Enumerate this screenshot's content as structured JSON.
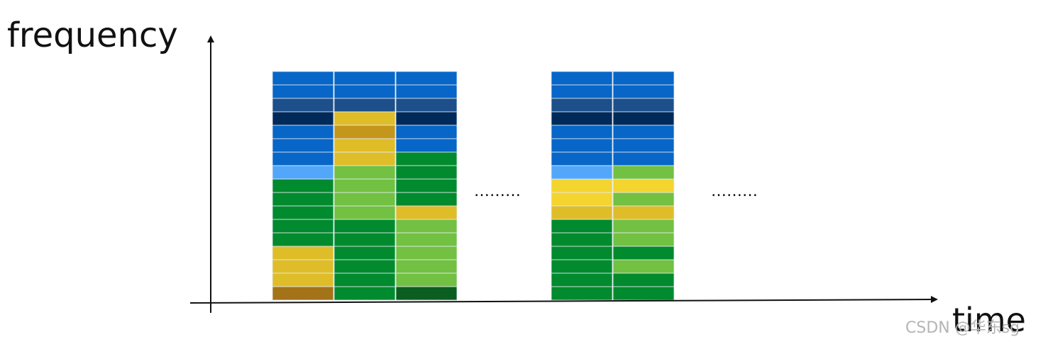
{
  "labels": {
    "y_axis": "frequency",
    "x_axis": "time",
    "ellipsis_1": "………",
    "ellipsis_2": "………"
  },
  "watermark": "CSDN @华东sg",
  "colors": {
    "B": "#0766c7",
    "D": "#1d4f8a",
    "N": "#002a5a",
    "L": "#52a7fa",
    "G": "#018a2e",
    "g": "#72c142",
    "Y": "#dfbd29",
    "O": "#c4961c",
    "y": "#f4d42f",
    "R": "#a47218",
    "K": "#0a5e20",
    "axis": "#111111",
    "divider": "#e8eef3"
  },
  "columns": [
    {
      "group": 1,
      "cells": [
        "B",
        "B",
        "D",
        "N",
        "B",
        "B",
        "B",
        "L",
        "G",
        "G",
        "G",
        "G",
        "G",
        "Y",
        "Y",
        "Y",
        "R"
      ]
    },
    {
      "group": 1,
      "cells": [
        "B",
        "B",
        "D",
        "Y",
        "O",
        "Y",
        "Y",
        "g",
        "g",
        "g",
        "g",
        "G",
        "G",
        "G",
        "G",
        "G",
        "G"
      ]
    },
    {
      "group": 1,
      "cells": [
        "B",
        "B",
        "D",
        "N",
        "B",
        "B",
        "G",
        "G",
        "G",
        "G",
        "Y",
        "g",
        "g",
        "g",
        "g",
        "g",
        "K"
      ]
    },
    {
      "group": 2,
      "cells": [
        "B",
        "B",
        "D",
        "N",
        "B",
        "B",
        "B",
        "L",
        "y",
        "y",
        "Y",
        "G",
        "G",
        "G",
        "G",
        "G",
        "G"
      ]
    },
    {
      "group": 2,
      "cells": [
        "B",
        "B",
        "D",
        "N",
        "B",
        "B",
        "B",
        "g",
        "y",
        "g",
        "Y",
        "g",
        "g",
        "G",
        "g",
        "G",
        "G"
      ]
    }
  ]
}
